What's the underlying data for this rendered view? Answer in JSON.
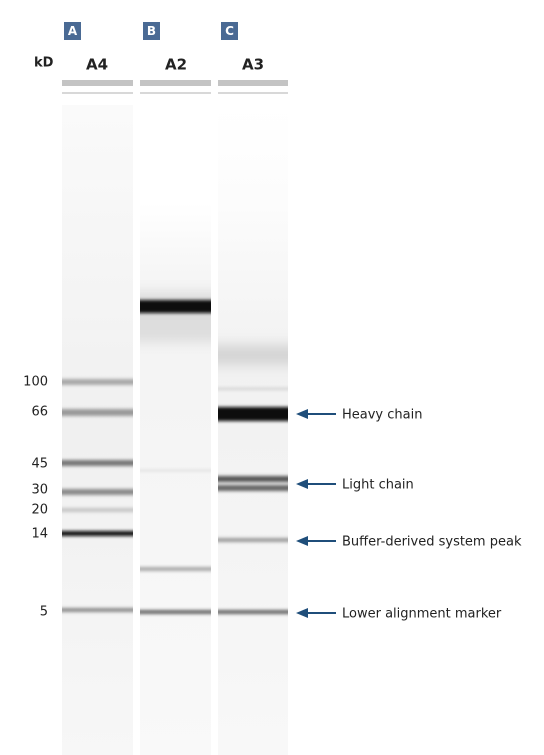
{
  "size_unit": "kD",
  "lanes": [
    {
      "letter": "A",
      "name": "A4"
    },
    {
      "letter": "B",
      "name": "A2"
    },
    {
      "letter": "C",
      "name": "A3"
    }
  ],
  "size_markers": [
    "100",
    "66",
    "45",
    "30",
    "20",
    "14",
    "5"
  ],
  "annotations": [
    "Heavy chain",
    "Light chain",
    "Buffer-derived system peak",
    "Lower alignment marker"
  ]
}
